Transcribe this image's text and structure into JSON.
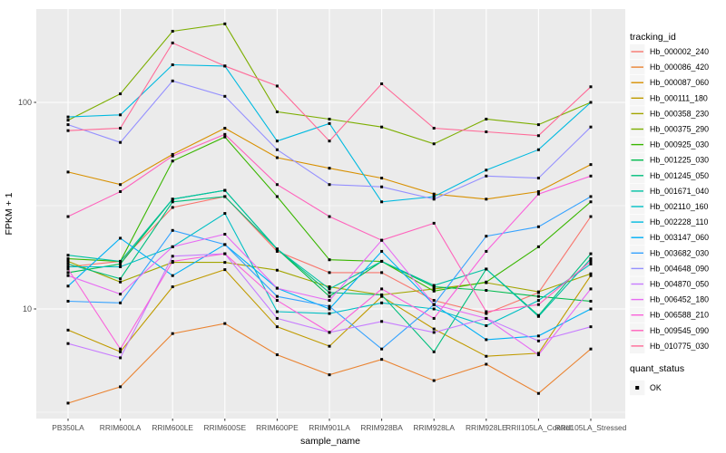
{
  "chart_data": {
    "type": "line",
    "title": "",
    "xlabel": "sample_name",
    "ylabel": "FPKM + 1",
    "y_scale": "log10",
    "ylim": [
      3.0,
      283
    ],
    "y_major_ticks": [
      10,
      100
    ],
    "y_minor_ticks": [
      3.162,
      31.62
    ],
    "grid": true,
    "legend_position": "right",
    "categories": [
      "PB350LA",
      "RRIM600LA",
      "RRIM600LE",
      "RRIM600SE",
      "RRIM600PE",
      "RRIM901LA",
      "RRIM928BA",
      "RRIM928LA",
      "RRIM928LE",
      "RRII105LA_Control",
      "RRII105LA_Stressed"
    ],
    "legend_title": "tracking_id",
    "legend2_title": "quant_status",
    "legend2_items": [
      {
        "label": "OK",
        "marker": "black-square"
      }
    ],
    "point_marker": "black-square",
    "colors": {
      "panel_bg": "#EBEBEB",
      "grid": "#FFFFFF",
      "tick_text": "#4D4D4D",
      "axis_title": "#000000",
      "point": "#000000",
      "legend_key_bg": "#F5F5F5"
    },
    "series": [
      {
        "name": "Hb_000002_240",
        "color": "#F8766D",
        "values": [
          16.0,
          17.0,
          31,
          35,
          19,
          15,
          15,
          11,
          9.5,
          12,
          28
        ]
      },
      {
        "name": "Hb_000086_420",
        "color": "#EA8331",
        "values": [
          3.5,
          4.2,
          7.6,
          8.5,
          6.0,
          4.8,
          5.7,
          4.5,
          5.4,
          3.9,
          6.4
        ]
      },
      {
        "name": "Hb_000087_060",
        "color": "#D89000",
        "values": [
          46,
          40,
          56,
          75,
          54,
          48,
          43,
          36,
          34,
          37,
          50
        ]
      },
      {
        "name": "Hb_000111_180",
        "color": "#C09B00",
        "values": [
          7.9,
          6.2,
          12.8,
          15.5,
          8.2,
          6.6,
          11.5,
          8.0,
          5.9,
          6.1,
          14.5
        ]
      },
      {
        "name": "Hb_000358_230",
        "color": "#A3A500",
        "values": [
          17.0,
          13.5,
          16.8,
          16.8,
          15.4,
          12.8,
          11.7,
          12.5,
          13.4,
          12.1,
          14.8
        ]
      },
      {
        "name": "Hb_000375_290",
        "color": "#7CAE00",
        "values": [
          82,
          110,
          221,
          240,
          90,
          83,
          76,
          63,
          83,
          78,
          100
        ]
      },
      {
        "name": "Hb_000925_030",
        "color": "#39B600",
        "values": [
          17.5,
          17.0,
          52,
          68,
          35,
          17.3,
          17,
          12.2,
          13.5,
          20,
          33
        ]
      },
      {
        "name": "Hb_001225_030",
        "color": "#00BB4E",
        "values": [
          15.0,
          16.5,
          34,
          37.5,
          19.5,
          11.5,
          17,
          12.8,
          12.3,
          11.5,
          10.9
        ]
      },
      {
        "name": "Hb_001245_050",
        "color": "#00BF7D",
        "values": [
          16.5,
          14.0,
          33,
          35,
          19.5,
          12.0,
          11.7,
          6.2,
          15.6,
          9.3,
          18.5
        ]
      },
      {
        "name": "Hb_001671_040",
        "color": "#00C1A3",
        "values": [
          18.2,
          17.0,
          34,
          37.5,
          19.5,
          12.5,
          17,
          13,
          15.6,
          9.2,
          17.5
        ]
      },
      {
        "name": "Hb_002110_160",
        "color": "#00BFC4",
        "values": [
          16.0,
          16.0,
          20,
          29,
          9.7,
          9.5,
          10.7,
          10,
          8.3,
          11,
          16.5
        ]
      },
      {
        "name": "Hb_002228_110",
        "color": "#00BAE0",
        "values": [
          85,
          87,
          152,
          150,
          65,
          79,
          33,
          35,
          47,
          59,
          100
        ]
      },
      {
        "name": "Hb_003147_060",
        "color": "#00B0F6",
        "values": [
          12.9,
          22,
          14.5,
          20.5,
          12.6,
          10,
          19,
          10.5,
          7.1,
          7.4,
          10
        ]
      },
      {
        "name": "Hb_003682_030",
        "color": "#35A2FF",
        "values": [
          10.9,
          10.7,
          24,
          20.5,
          11.5,
          10.3,
          6.4,
          10.5,
          22.5,
          25,
          35
        ]
      },
      {
        "name": "Hb_004648_090",
        "color": "#9590FF",
        "values": [
          78,
          64,
          127,
          107,
          59,
          40,
          39,
          34,
          44,
          43,
          76
        ]
      },
      {
        "name": "Hb_004870_050",
        "color": "#C77CFF",
        "values": [
          6.8,
          5.8,
          18,
          18.5,
          9.0,
          7.7,
          8.7,
          7.7,
          9.0,
          7.0,
          8.2
        ]
      },
      {
        "name": "Hb_006452_180",
        "color": "#E76BF3",
        "values": [
          14.5,
          11.8,
          20,
          23,
          12.6,
          11,
          21.5,
          10.5,
          9.0,
          6.0,
          12.5
        ]
      },
      {
        "name": "Hb_006588_210",
        "color": "#FA62DB",
        "values": [
          15.6,
          6.4,
          17,
          18.5,
          11,
          7.7,
          12.5,
          9.0,
          19,
          36,
          44
        ]
      },
      {
        "name": "Hb_009545_090",
        "color": "#FF62BC",
        "values": [
          28,
          37,
          55,
          70,
          40,
          28,
          21.5,
          26,
          9.7,
          10.5,
          17
        ]
      },
      {
        "name": "Hb_010775_030",
        "color": "#FF6A98",
        "values": [
          73,
          75,
          194,
          150,
          120,
          65,
          123,
          75,
          72,
          69,
          119
        ]
      }
    ]
  },
  "layout_text": {
    "y_tick_labels": [
      "100",
      "10"
    ]
  }
}
